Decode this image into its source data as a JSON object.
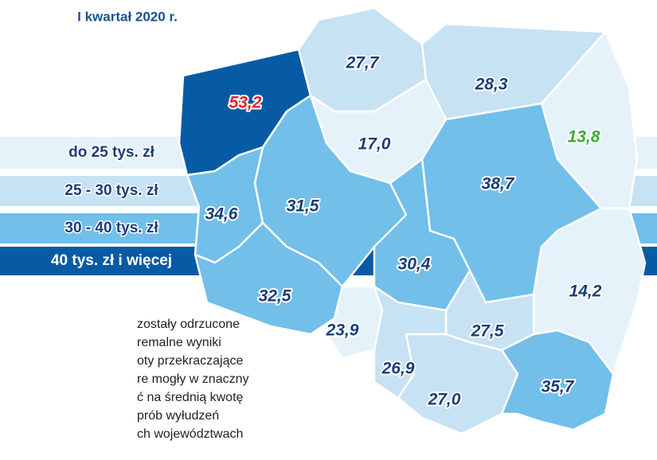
{
  "title": "I kwartał 2020 r.",
  "legend": [
    {
      "label": "do 25 tys. zł",
      "color": "#e6f2fa"
    },
    {
      "label": "25 - 30 tys. zł",
      "color": "#c6e2f3"
    },
    {
      "label": "30 - 40 tys. zł",
      "color": "#72bfe9"
    },
    {
      "label": "40 tys. zł i więcej",
      "color": "#075ba5"
    }
  ],
  "regions": [
    {
      "label": "53,2",
      "color": "#075ba5",
      "label_color": "#e8212b"
    },
    {
      "label": "27,7",
      "color": "#c6e2f3",
      "label_color": "#1a3e78"
    },
    {
      "label": "28,3",
      "color": "#c6e2f3",
      "label_color": "#1a3e78"
    },
    {
      "label": "13,8",
      "color": "#e6f2fa",
      "label_color": "#3aa935"
    },
    {
      "label": "17,0",
      "color": "#e6f2fa",
      "label_color": "#1a3e78"
    },
    {
      "label": "38,7",
      "color": "#72bfe9",
      "label_color": "#1a3e78"
    },
    {
      "label": "34,6",
      "color": "#72bfe9",
      "label_color": "#1a3e78"
    },
    {
      "label": "31,5",
      "color": "#72bfe9",
      "label_color": "#1a3e78"
    },
    {
      "label": "30,4",
      "color": "#72bfe9",
      "label_color": "#1a3e78"
    },
    {
      "label": "32,5",
      "color": "#72bfe9",
      "label_color": "#1a3e78"
    },
    {
      "label": "14,2",
      "color": "#e6f2fa",
      "label_color": "#1a3e78"
    },
    {
      "label": "23,9",
      "color": "#e6f2fa",
      "label_color": "#1a3e78"
    },
    {
      "label": "27,5",
      "color": "#c6e2f3",
      "label_color": "#1a3e78"
    },
    {
      "label": "26,9",
      "color": "#c6e2f3",
      "label_color": "#1a3e78"
    },
    {
      "label": "35,7",
      "color": "#72bfe9",
      "label_color": "#1a3e78"
    },
    {
      "label": "27,0",
      "color": "#c6e2f3",
      "label_color": "#1a3e78"
    }
  ],
  "note": [
    "zostały odrzucone",
    "remalne wyniki",
    "oty przekraczające",
    "re mogły w znaczny",
    "ć na średnią kwotę",
    "prób wyłudzeń",
    "ch województwach"
  ]
}
